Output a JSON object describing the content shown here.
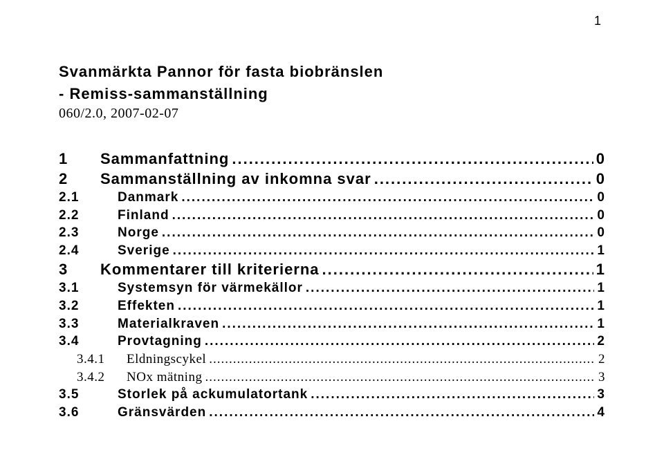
{
  "page_number": "1",
  "title_line1": "Svanmärkta Pannor för fasta biobränslen",
  "title_line2": "- Remiss-sammanställning",
  "subtitle": "060/2.0, 2007-02-07",
  "toc": [
    {
      "level": 1,
      "num": "1",
      "label": "Sammanfattning",
      "page": "0"
    },
    {
      "level": 1,
      "num": "2",
      "label": "Sammanställning av inkomna svar",
      "page": "0"
    },
    {
      "level": 2,
      "num": "2.1",
      "label": "Danmark",
      "page": "0"
    },
    {
      "level": 2,
      "num": "2.2",
      "label": "Finland",
      "page": "0"
    },
    {
      "level": 2,
      "num": "2.3",
      "label": "Norge",
      "page": "0"
    },
    {
      "level": 2,
      "num": "2.4",
      "label": "Sverige",
      "page": "1"
    },
    {
      "level": 1,
      "num": "3",
      "label": "Kommentarer till kriterierna",
      "page": "1"
    },
    {
      "level": 2,
      "num": "3.1",
      "label": "Systemsyn för värmekällor",
      "page": "1"
    },
    {
      "level": 2,
      "num": "3.2",
      "label": "Effekten",
      "page": "1"
    },
    {
      "level": 2,
      "num": "3.3",
      "label": "Materialkraven",
      "page": "1"
    },
    {
      "level": 2,
      "num": "3.4",
      "label": "Provtagning",
      "page": "2"
    },
    {
      "level": 3,
      "num": "3.4.1",
      "label": "Eldningscykel",
      "page": "2"
    },
    {
      "level": 3,
      "num": "3.4.2",
      "label": "NOx mätning",
      "page": "3"
    },
    {
      "level": 2,
      "num": "3.5",
      "label": "Storlek på ackumulatortank",
      "page": "3"
    },
    {
      "level": 2,
      "num": "3.6",
      "label": "Gränsvärden",
      "page": "4"
    }
  ],
  "dot_fill": "..................................................................................................................................................................................................................................................."
}
